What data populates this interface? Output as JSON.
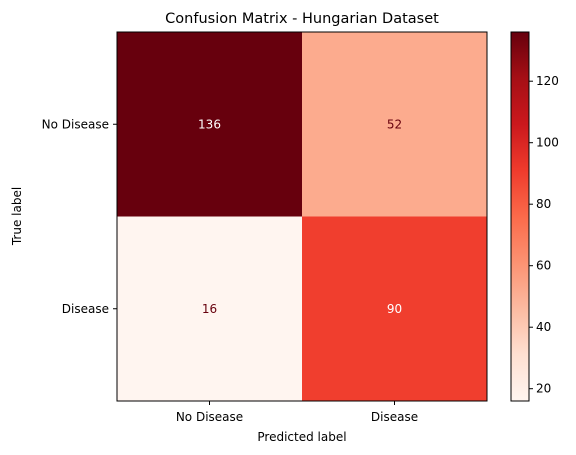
{
  "chart_data": {
    "type": "heatmap",
    "title": "Confusion Matrix - Hungarian Dataset",
    "xlabel": "Predicted label",
    "ylabel": "True label",
    "x_categories": [
      "No Disease",
      "Disease"
    ],
    "y_categories": [
      "No Disease",
      "Disease"
    ],
    "values": [
      [
        136,
        52
      ],
      [
        16,
        90
      ]
    ],
    "colormap": "Reds",
    "colorbar": {
      "min": 16,
      "max": 136,
      "ticks": [
        20,
        40,
        60,
        80,
        100,
        120
      ]
    },
    "cell_text_colors": {
      "dark_cell": "#ffffff",
      "light_cell": "#67000d"
    },
    "grid": false
  }
}
